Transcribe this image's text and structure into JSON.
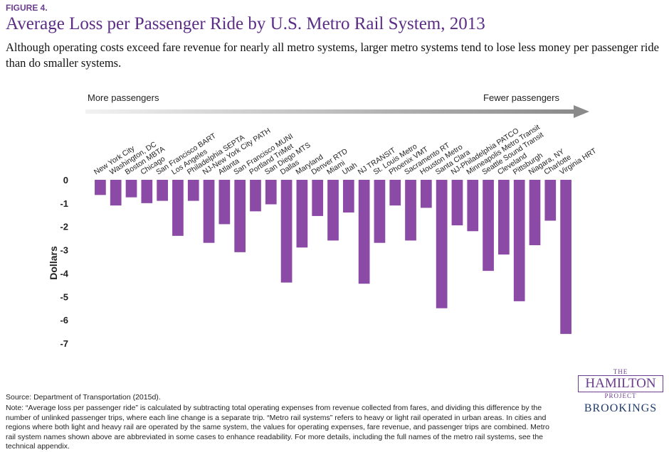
{
  "chart_data": {
    "type": "bar",
    "figure_label": "FIGURE 4.",
    "title": "Average Loss per Passenger Ride by U.S. Metro Rail System, 2013",
    "subtitle": "Although operating costs exceed fare revenue for nearly all metro systems, larger metro systems tend to lose less money per passenger ride than do smaller systems.",
    "y_label": "Dollars",
    "arrow_left": "More passengers",
    "arrow_right": "Fewer passengers",
    "categories": [
      "New York City",
      "Washington, DC",
      "Boston MBTA",
      "Chicago",
      "San Francisco BART",
      "Los Angeles",
      "Philadelphia SEPTA",
      "NJ-New York City PATH",
      "Atlanta",
      "San Francisco MUNI",
      "Portland TriMet",
      "San Diego MTS",
      "Dallas",
      "Maryland",
      "Denver RTD",
      "Miami",
      "Utah",
      "NJ TRANSIT",
      "St. Louis Metro",
      "Phoenix VMT",
      "Sacramento RT",
      "Houston Metro",
      "Santa Clara",
      "NJ-Philadelphia PATCO",
      "Minneapolis Metro Transit",
      "Seattle Sound Transit",
      "Cleveland",
      "Pittsburgh",
      "Niagara, NY",
      "Charlotte",
      "Virginia HRT"
    ],
    "values": [
      -0.65,
      -1.1,
      -0.75,
      -1.0,
      -0.9,
      -2.4,
      -0.9,
      -2.7,
      -1.9,
      -3.1,
      -1.35,
      -1.05,
      -4.4,
      -2.9,
      -1.55,
      -2.6,
      -1.4,
      -4.45,
      -2.7,
      -1.1,
      -2.6,
      -1.2,
      -5.5,
      -1.95,
      -2.2,
      -3.9,
      -3.2,
      -5.2,
      -2.8,
      -1.75,
      -6.6
    ],
    "color": "#8b4aa6",
    "ylim": [
      -7,
      0
    ],
    "yticks": [
      0,
      -1,
      -2,
      -3,
      -4,
      -5,
      -6,
      -7
    ],
    "source": "Source: Department of Transportation (2015d).",
    "note": "Note:  “Average loss per passenger ride” is calculated by subtracting total operating expenses from revenue collected from fares, and dividing this difference by the number of unlinked passenger trips, where each line change is a separate trip. “Metro rail systems” refers to heavy or light rail operated in urban areas. In cities and regions where both light and heavy rail are operated by the same system, the values for operating expenses, fare revenue, and passenger trips are combined. Metro rail system names shown above are abbreviated in some cases to enhance readability. For more details, including the full names of the metro rail systems, see the technical appendix.",
    "logo": {
      "the": "THE",
      "hamilton": "HAMILTON",
      "project": "PROJECT",
      "brookings": "BROOKINGS"
    }
  }
}
